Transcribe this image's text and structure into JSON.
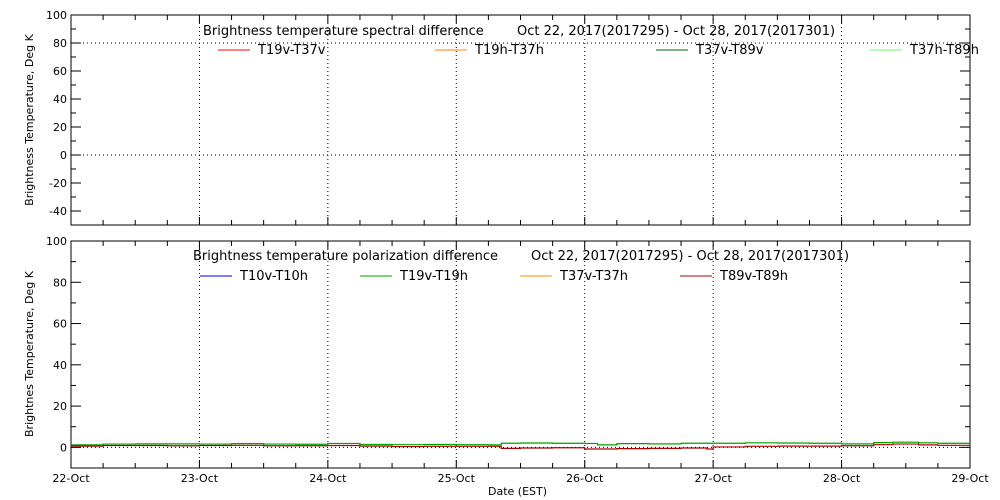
{
  "chart_data": [
    {
      "type": "line",
      "title": "Brightness temperature spectral difference",
      "date_range": "Oct 22, 2017(2017295) - Oct 28, 2017(2017301)",
      "ylabel": "Brightness Temperature, Deg K",
      "xlabel": "",
      "ylim": [
        -50,
        100
      ],
      "yticks": [
        -40,
        -20,
        0,
        20,
        40,
        60,
        80,
        100
      ],
      "xlim": [
        22,
        29
      ],
      "xtick_labels": [],
      "legend": "top",
      "series": [
        {
          "name": "T19v-T37v",
          "color": "#ff0000",
          "x": [],
          "y": []
        },
        {
          "name": "T19h-T37h",
          "color": "#ff7f00",
          "x": [],
          "y": []
        },
        {
          "name": "T37v-T89v",
          "color": "#006400",
          "x": [],
          "y": []
        },
        {
          "name": "T37h-T89h",
          "color": "#66ff66",
          "x": [],
          "y": []
        }
      ]
    },
    {
      "type": "line",
      "title": "Brightness temperature polarization difference",
      "date_range": "Oct 22, 2017(2017295) - Oct 28, 2017(2017301)",
      "ylabel": "Brightnes Temperature, Deg K",
      "xlabel": "Date (EST)",
      "ylim": [
        -10,
        100
      ],
      "yticks": [
        0,
        20,
        40,
        60,
        80,
        100
      ],
      "xlim": [
        22,
        29
      ],
      "xtick_labels": [
        "22-Oct",
        "23-Oct",
        "24-Oct",
        "25-Oct",
        "26-Oct",
        "27-Oct",
        "28-Oct",
        "29-Oct"
      ],
      "legend": "top",
      "series": [
        {
          "name": "T10v-T10h",
          "color": "#0000ff",
          "x": [],
          "y": []
        },
        {
          "name": "T19v-T19h",
          "color": "#00a000",
          "x": [
            22,
            22.25,
            22.5,
            22.75,
            23,
            23.25,
            23.5,
            23.75,
            24,
            24.25,
            24.5,
            24.75,
            25,
            25.25,
            25.35,
            25.5,
            25.75,
            26,
            26.1,
            26.25,
            26.5,
            26.75,
            27,
            27.25,
            27.5,
            27.75,
            28,
            28.25,
            28.4,
            28.6,
            28.75,
            29
          ],
          "y": [
            1.2,
            1.6,
            1.7,
            1.7,
            1.6,
            1.8,
            1.6,
            1.5,
            1.9,
            1.4,
            1.3,
            1.4,
            1.3,
            1.2,
            2.0,
            2.1,
            2.0,
            1.9,
            1.2,
            1.8,
            1.7,
            2.0,
            2.0,
            2.2,
            2.1,
            2.0,
            1.7,
            2.3,
            2.5,
            2.2,
            2.0,
            2.0
          ]
        },
        {
          "name": "T37v-T37h",
          "color": "#ff8c00",
          "x": [],
          "y": []
        },
        {
          "name": "T89v-T89h",
          "color": "#b00000",
          "x": [
            22,
            22.25,
            22.5,
            22.75,
            23,
            23.25,
            23.5,
            23.75,
            24,
            24.25,
            24.5,
            24.75,
            25,
            25.25,
            25.35,
            25.5,
            25.75,
            26,
            26.25,
            26.5,
            26.75,
            26.95,
            27,
            27.25,
            27.5,
            27.75,
            28,
            28.25,
            28.4,
            28.6,
            28.75,
            29
          ],
          "y": [
            0.6,
            0.9,
            0.9,
            0.8,
            0.9,
            1.0,
            0.8,
            0.8,
            0.9,
            0.6,
            0.4,
            0.5,
            0.5,
            0.5,
            -0.5,
            -0.3,
            -0.2,
            -0.8,
            -0.6,
            -0.5,
            -0.3,
            -0.8,
            0.2,
            0.5,
            0.6,
            0.6,
            0.8,
            1.3,
            1.6,
            1.2,
            1.0,
            1.0
          ]
        }
      ]
    }
  ]
}
